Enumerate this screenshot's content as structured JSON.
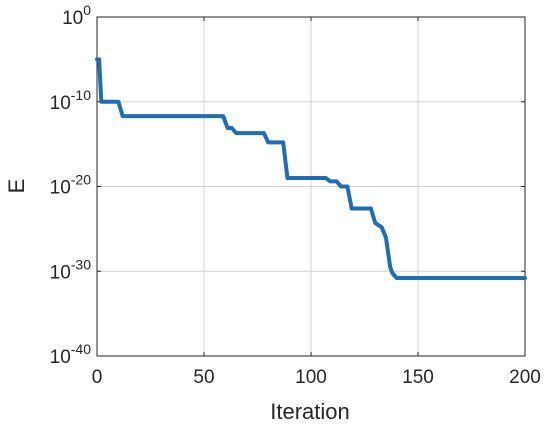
{
  "chart_data": {
    "type": "line",
    "xlabel": "Iteration",
    "ylabel": "E",
    "xlim": [
      0,
      200
    ],
    "ylim_log10": [
      -40,
      0
    ],
    "yscale": "log",
    "grid": true,
    "x_ticks": [
      0,
      50,
      100,
      150,
      200
    ],
    "x_tick_labels": [
      "0",
      "50",
      "100",
      "150",
      "200"
    ],
    "y_ticks_log10": [
      0,
      -10,
      -20,
      -30,
      -40
    ],
    "y_tick_labels": [
      {
        "base": "10",
        "exp": "0"
      },
      {
        "base": "10",
        "exp": "-10"
      },
      {
        "base": "10",
        "exp": "-20"
      },
      {
        "base": "10",
        "exp": "-30"
      },
      {
        "base": "10",
        "exp": "-40"
      }
    ],
    "series": [
      {
        "color": "#1f6db5",
        "x": [
          0,
          1,
          2,
          10,
          12,
          59,
          61,
          63,
          65,
          78,
          80,
          87,
          89,
          107,
          109,
          112,
          114,
          117,
          119,
          128,
          130,
          133,
          135,
          137,
          138,
          140,
          141,
          143,
          200
        ],
        "log10_y": [
          -5,
          -5,
          -10,
          -10,
          -11.7,
          -11.7,
          -13.1,
          -13.1,
          -13.7,
          -13.7,
          -14.8,
          -14.8,
          -19,
          -19,
          -19.4,
          -19.4,
          -20,
          -20,
          -22.6,
          -22.6,
          -24.3,
          -24.8,
          -26,
          -29.5,
          -30.2,
          -30.8,
          -30.8,
          -30.8,
          -30.8
        ]
      }
    ]
  }
}
